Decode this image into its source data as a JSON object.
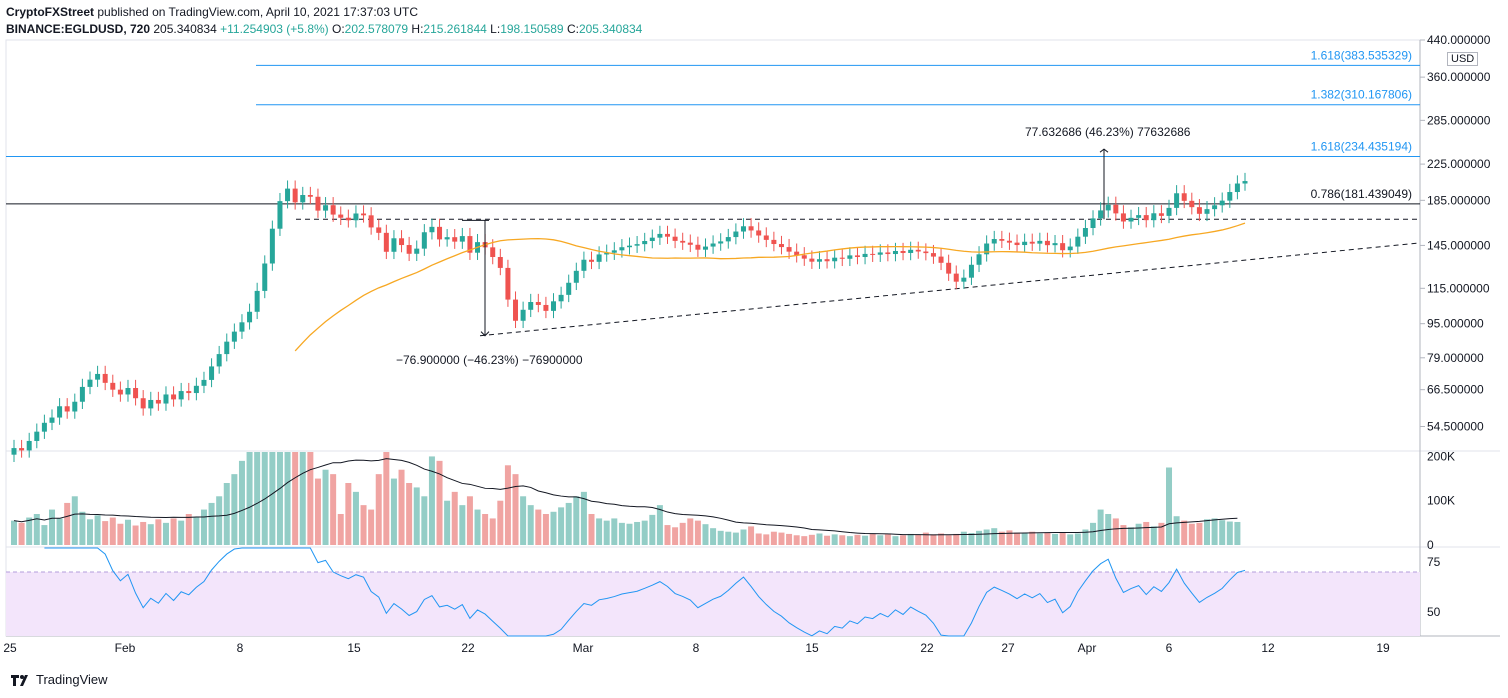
{
  "header": {
    "publisher": "CryptoFXStreet",
    "published_text": "published on TradingView.com, April 10, 2021 17:37:03 UTC",
    "symbol": "BINANCE:EGLDUSD, 720",
    "last": "205.340834",
    "change": "+11.254903 (+5.8%)",
    "o_label": "O:",
    "o": "202.578079",
    "h_label": "H:",
    "h": "215.261844",
    "l_label": "L:",
    "l": "198.150589",
    "c_label": "C:",
    "c": "205.340834"
  },
  "currency": "USD",
  "footer": {
    "brand": "TradingView"
  },
  "colors": {
    "up": "#26a69a",
    "down": "#ef5350",
    "up_vol": "#93cdc6",
    "down_vol": "#f0a4a2",
    "ma": "#f7a823",
    "fib": "#2196f3",
    "rsi": "#2196f3",
    "rsi_band": "#f3e5fb"
  },
  "chart_data": {
    "type": "candlestick",
    "price_axis": {
      "scale": "log",
      "ticks": [
        "440.000000",
        "360.000000",
        "285.000000",
        "225.000000",
        "185.000000",
        "145.000000",
        "115.000000",
        "95.000000",
        "79.000000",
        "66.500000",
        "54.500000"
      ],
      "tick_values": [
        440,
        360,
        285,
        225,
        185,
        145,
        115,
        95,
        79,
        66.5,
        54.5
      ],
      "range": [
        48,
        440
      ]
    },
    "time_axis": {
      "labels": [
        "25",
        "Feb",
        "8",
        "15",
        "22",
        "Mar",
        "8",
        "15",
        "22",
        "27",
        "Apr",
        "6",
        "12",
        "19"
      ]
    },
    "fib_levels": [
      {
        "label": "1.618(383.535329)",
        "value": 383.535329
      },
      {
        "label": "1.382(310.167806)",
        "value": 310.167806
      },
      {
        "label": "1.618(234.435194)",
        "value": 234.435194
      },
      {
        "label": "0.786(181.439049)",
        "value": 181.439049
      }
    ],
    "annotations": {
      "measure_down": "−76.900000 (−46.23%) −76900000",
      "measure_up": "77.632686 (46.23%) 77632686"
    },
    "volume_axis": {
      "ticks": [
        "200K",
        "100K",
        "0"
      ],
      "tick_values": [
        200000,
        100000,
        0
      ]
    },
    "rsi_axis": {
      "ticks": [
        "75",
        "50"
      ],
      "tick_values": [
        75,
        50
      ],
      "band": [
        30,
        70
      ]
    },
    "candles": {
      "open": [
        46.8,
        48.5,
        47.9,
        50.4,
        53.0,
        55.6,
        57.2,
        60.8,
        59.1,
        62.3,
        67.5,
        70.2,
        72.4,
        69.0,
        66.5,
        64.8,
        67.1,
        63.5,
        60.1,
        62.9,
        61.7,
        64.8,
        63.1,
        66.0,
        65.3,
        67.9,
        70.1,
        75.4,
        80.6,
        86.2,
        91.0,
        95.7,
        101.3,
        113.4,
        131.5,
        158.7,
        184.2,
        197.1,
        183.0,
        190.4,
        188.6,
        175.0,
        180.2,
        171.3,
        168.4,
        166.1,
        172.3,
        170.6,
        159.8,
        155.2,
        140.1,
        150.7,
        145.3,
        138.6,
        142.5,
        155.7,
        160.3,
        149.8,
        151.6,
        148.0,
        152.5,
        139.4,
        147.6,
        143.5,
        136.2,
        128.4,
        108.2,
        96.5,
        102.4,
        106.8,
        105.1,
        101.8,
        107.2,
        111.0,
        118.5,
        126.4,
        134.2,
        132.7,
        138.1,
        139.4,
        141.2,
        143.6,
        144.8,
        146.0,
        148.5,
        151.2,
        154.3,
        152.0,
        148.6,
        147.2,
        145.5,
        141.7,
        144.1,
        146.5,
        148.2,
        151.7,
        156.3,
        160.8,
        157.2,
        153.0,
        149.4,
        146.1,
        143.7,
        140.2,
        137.5,
        135.0,
        132.8,
        134.6,
        133.1,
        135.7,
        134.9,
        137.4,
        136.2,
        138.5,
        137.9,
        139.6,
        138.4,
        140.7,
        139.2,
        141.6,
        140.3,
        139.1,
        136.5,
        132.0,
        124.5,
        119.2,
        121.8,
        130.6,
        138.2,
        146.5,
        150.1,
        148.7,
        147.2,
        145.3,
        147.9,
        146.4,
        148.6,
        145.2,
        146.8,
        141.3,
        144.1,
        152.0,
        159.3,
        167.8,
        175.2,
        180.6,
        172.4,
        165.0,
        168.3,
        170.8,
        166.2,
        172.5,
        170.1,
        177.6,
        192.2,
        184.5,
        178.3,
        172.0,
        176.4,
        180.1,
        184.7,
        193.5,
        202.6
      ],
      "close": [
        48.5,
        47.9,
        50.4,
        53.0,
        55.6,
        57.2,
        60.8,
        59.1,
        62.3,
        67.5,
        70.2,
        72.4,
        69.0,
        66.5,
        64.8,
        67.1,
        63.5,
        60.1,
        62.9,
        61.7,
        64.8,
        63.1,
        66.0,
        65.3,
        67.9,
        70.1,
        75.4,
        80.6,
        86.2,
        91.0,
        95.7,
        101.3,
        113.4,
        131.5,
        158.7,
        184.2,
        197.1,
        183.0,
        190.4,
        188.6,
        175.0,
        180.2,
        171.3,
        168.4,
        166.1,
        172.3,
        170.6,
        159.8,
        155.2,
        140.1,
        150.7,
        145.3,
        138.6,
        142.5,
        155.7,
        160.3,
        149.8,
        151.6,
        148.0,
        152.5,
        139.4,
        147.6,
        143.5,
        136.2,
        128.4,
        108.2,
        96.5,
        102.4,
        106.8,
        105.1,
        101.8,
        107.2,
        111.0,
        118.5,
        126.4,
        134.2,
        132.7,
        138.1,
        139.4,
        141.2,
        143.6,
        144.8,
        146.0,
        148.5,
        151.2,
        154.3,
        152.0,
        148.6,
        147.2,
        145.5,
        141.7,
        144.1,
        146.5,
        148.2,
        151.7,
        156.3,
        160.8,
        157.2,
        153.0,
        149.4,
        146.1,
        143.7,
        140.2,
        137.5,
        135.0,
        132.8,
        134.6,
        133.1,
        135.7,
        134.9,
        137.4,
        136.2,
        138.5,
        137.9,
        139.6,
        138.4,
        140.7,
        139.2,
        141.6,
        140.3,
        139.1,
        136.5,
        132.0,
        124.5,
        119.2,
        121.8,
        130.6,
        138.2,
        146.5,
        150.1,
        148.7,
        147.2,
        145.3,
        147.9,
        146.4,
        148.6,
        145.2,
        146.8,
        141.3,
        144.1,
        152.0,
        159.3,
        167.8,
        175.2,
        180.6,
        172.4,
        165.0,
        168.3,
        170.8,
        166.2,
        172.5,
        170.1,
        177.6,
        192.2,
        184.5,
        178.3,
        172.0,
        176.4,
        180.1,
        184.7,
        193.5,
        202.6,
        205.3
      ],
      "vol": [
        55000,
        50000,
        62000,
        70000,
        45000,
        80000,
        60000,
        95000,
        110000,
        75000,
        58000,
        67000,
        54000,
        62000,
        48000,
        57000,
        44000,
        52000,
        47000,
        58000,
        50000,
        60000,
        55000,
        70000,
        62000,
        80000,
        95000,
        110000,
        140000,
        160000,
        190000,
        210000,
        230000,
        260000,
        280000,
        300000,
        310000,
        270000,
        250000,
        220000,
        150000,
        170000,
        160000,
        70000,
        140000,
        120000,
        90000,
        80000,
        160000,
        240000,
        150000,
        170000,
        140000,
        130000,
        110000,
        200000,
        190000,
        100000,
        120000,
        90000,
        110000,
        80000,
        70000,
        60000,
        100000,
        180000,
        160000,
        110000,
        90000,
        80000,
        70000,
        75000,
        85000,
        95000,
        110000,
        120000,
        70000,
        60000,
        55000,
        60000,
        50000,
        48000,
        52000,
        55000,
        68000,
        90000,
        45000,
        40000,
        50000,
        60000,
        55000,
        47000,
        38000,
        32000,
        30000,
        28000,
        35000,
        42000,
        26000,
        24000,
        30000,
        28000,
        25000,
        22000,
        20000,
        23000,
        26000,
        21000,
        24000,
        22000,
        20000,
        23000,
        21000,
        25000,
        22000,
        24000,
        20000,
        22000,
        25000,
        23000,
        28000,
        24000,
        26000,
        22000,
        25000,
        30000,
        27000,
        32000,
        35000,
        38000,
        30000,
        33000,
        28000,
        27000,
        30000,
        26000,
        28000,
        25000,
        27000,
        24000,
        26000,
        35000,
        50000,
        80000,
        70000,
        60000,
        45000,
        40000,
        48000,
        52000,
        42000,
        50000,
        175000,
        65000,
        55000,
        48000,
        50000,
        58000,
        60000,
        56000,
        53000,
        52000
      ]
    }
  }
}
